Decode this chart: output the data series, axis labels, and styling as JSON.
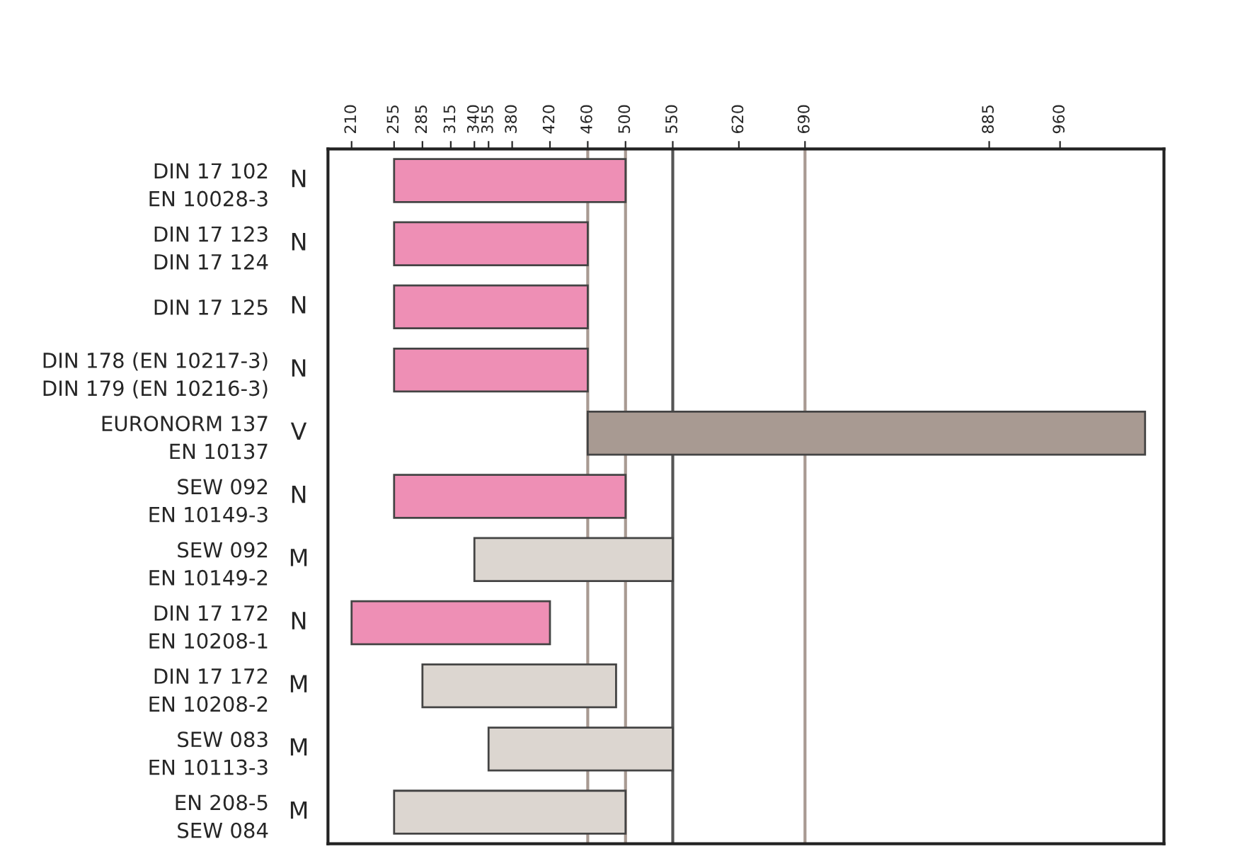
{
  "chart_data": {
    "type": "bar",
    "orientation": "horizontal",
    "categories": [
      "DIN 17 102\nEN 10028-3",
      "DIN 17 123\nDIN 17 124",
      "DIN 17 125",
      "DIN 178 (EN 10217-3)\nDIN 179 (EN 10216-3)",
      "EURONORM 137\nEN 10137",
      "SEW 092\nEN 10149-3",
      "SEW 092\nEN 10149-2",
      "DIN 17 172\nEN 10208-1",
      "DIN 17 172\nEN 10208-2",
      "SEW 083\nEN 10113-3",
      "EN 208-5\nSEW 084"
    ],
    "base": [
      255,
      255,
      255,
      255,
      460,
      255,
      340,
      210,
      285,
      355,
      255
    ],
    "values": [
      245,
      205,
      205,
      205,
      590,
      245,
      210,
      210,
      205,
      195,
      245
    ],
    "colors": [
      "#ee8fb5",
      "#ee8fb5",
      "#ee8fb5",
      "#ee8fb5",
      "#a89a92",
      "#ee8fb5",
      "#dcd6d0",
      "#ee8fb5",
      "#dcd6d0",
      "#dcd6d0",
      "#dcd6d0"
    ],
    "annotations": [
      "N",
      "N",
      "N",
      "N",
      "V",
      "N",
      "M",
      "N",
      "M",
      "M",
      "M"
    ],
    "xlim": [
      185,
      1070
    ],
    "xticks": [
      210,
      255,
      285,
      315,
      340,
      355,
      380,
      420,
      460,
      500,
      550,
      620,
      690,
      885,
      960
    ],
    "ref_lines": [
      {
        "axis": "x",
        "value": 460,
        "color": "#a89a92"
      },
      {
        "axis": "x",
        "value": 500,
        "color": "#a89a92"
      },
      {
        "axis": "x",
        "value": 550,
        "color": "#555555"
      },
      {
        "axis": "x",
        "value": 690,
        "color": "#a89a92"
      }
    ],
    "grid": false,
    "legend": false
  }
}
